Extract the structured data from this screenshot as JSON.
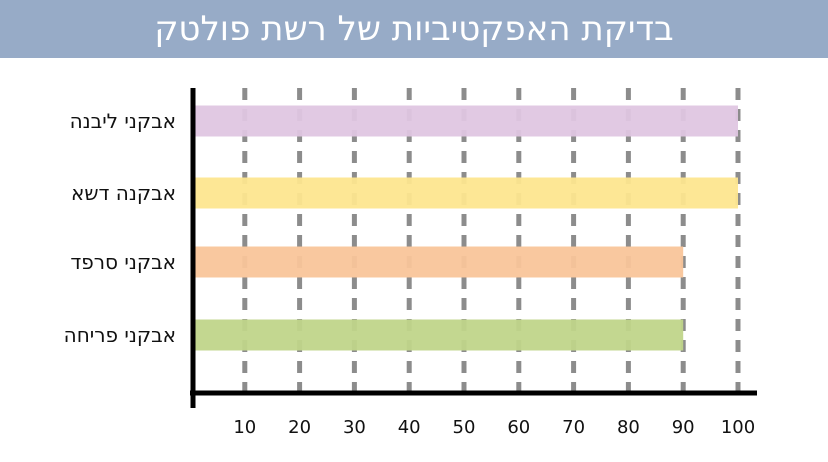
{
  "title": "בדיקת האפקטיביות של רשת פולטק",
  "chart_data": {
    "type": "bar",
    "orientation": "horizontal",
    "title": "בדיקת האפקטיביות של רשת פולטק",
    "xlabel": "",
    "ylabel": "",
    "categories": [
      "אבקני ליבנה",
      "אבקנה דשא",
      "אבקני סרפד",
      "אבקני פריחה"
    ],
    "values": [
      100,
      100,
      90,
      90
    ],
    "colors": [
      "#dfc6e2",
      "#fde68f",
      "#f9c59a",
      "#c0d58a"
    ],
    "x_ticks": [
      10,
      20,
      30,
      40,
      50,
      60,
      70,
      80,
      90,
      100
    ],
    "xlim": [
      0,
      100
    ],
    "gridlines": "vertical dashed",
    "grid_color": "#8c8c8c",
    "legend": "none"
  }
}
